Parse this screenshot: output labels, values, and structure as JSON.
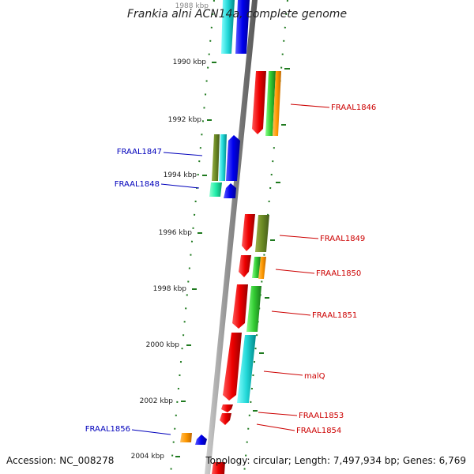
{
  "title": "Frankia alni ACN14a, complete genome",
  "footer": {
    "accession": "Accession: NC_008278",
    "summary": "Topology: circular; Length: 7,497,934 bp; Genes: 6,769"
  },
  "ticks": [
    "1988 kbp",
    "1990 kbp",
    "1992 kbp",
    "1994 kbp",
    "1996 kbp",
    "1998 kbp",
    "2000 kbp",
    "2002 kbp",
    "2004 kbp"
  ],
  "genes": {
    "g1846": "FRAAL1846",
    "g1847": "FRAAL1847",
    "g1848": "FRAAL1848",
    "g1849": "FRAAL1849",
    "g1850": "FRAAL1850",
    "g1851": "FRAAL1851",
    "malq": "malQ",
    "g1853": "FRAAL1853",
    "g1854": "FRAAL1854",
    "g1856": "FRAAL1856"
  },
  "colors": {
    "forward_label": "#cc0000",
    "reverse_label": "#0000bb",
    "axis": "#888888",
    "dashes": "#1f7a1f"
  }
}
